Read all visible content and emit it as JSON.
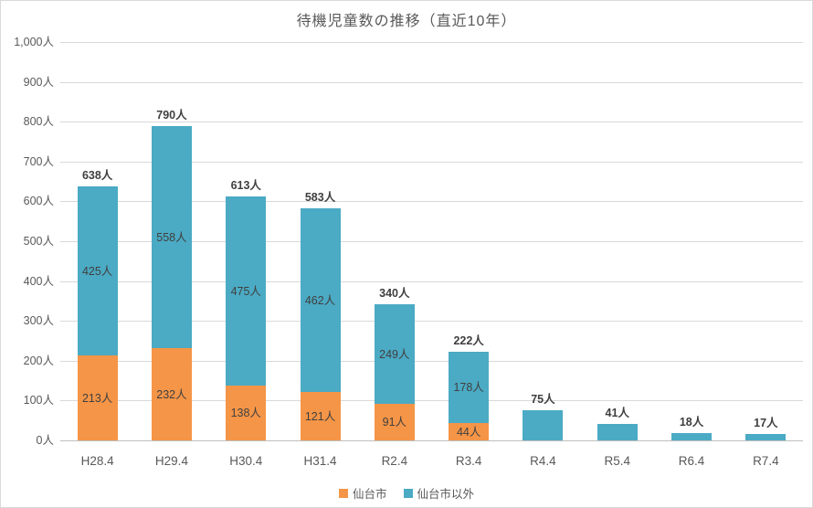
{
  "title": "待機児童数の推移（直近10年）",
  "legend": [
    {
      "label": "仙台市",
      "color": "#f59547"
    },
    {
      "label": "仙台市以外",
      "color": "#4baac4"
    }
  ],
  "chart_data": {
    "type": "bar",
    "stacked": true,
    "title": "待機児童数の推移（直近10年）",
    "unit": "人",
    "categories": [
      "H28.4",
      "H29.4",
      "H30.4",
      "H31.4",
      "R2.4",
      "R3.4",
      "R4.4",
      "R5.4",
      "R6.4",
      "R7.4"
    ],
    "series": [
      {
        "name": "仙台市",
        "color": "#f59547",
        "values": [
          213,
          232,
          138,
          121,
          91,
          44,
          0,
          0,
          0,
          0
        ],
        "labels": [
          "213人",
          "232人",
          "138人",
          "121人",
          "91人",
          "44人",
          "",
          "",
          "",
          ""
        ]
      },
      {
        "name": "仙台市以外",
        "color": "#4baac4",
        "values": [
          425,
          558,
          475,
          462,
          249,
          178,
          75,
          41,
          18,
          17
        ],
        "labels": [
          "425人",
          "558人",
          "475人",
          "462人",
          "249人",
          "178人",
          "",
          "",
          "",
          ""
        ]
      }
    ],
    "totals": {
      "values": [
        638,
        790,
        613,
        583,
        340,
        222,
        75,
        41,
        18,
        17
      ],
      "labels": [
        "638人",
        "790人",
        "613人",
        "583人",
        "340人",
        "222人",
        "75人",
        "41人",
        "18人",
        "17人"
      ]
    },
    "ylim": [
      0,
      1000
    ],
    "yticks": {
      "values": [
        0,
        100,
        200,
        300,
        400,
        500,
        600,
        700,
        800,
        900,
        1000
      ],
      "labels": [
        "0人",
        "100人",
        "200人",
        "300人",
        "400人",
        "500人",
        "600人",
        "700人",
        "800人",
        "900人",
        "1,000人"
      ]
    },
    "grid": true,
    "legend_position": "bottom"
  }
}
